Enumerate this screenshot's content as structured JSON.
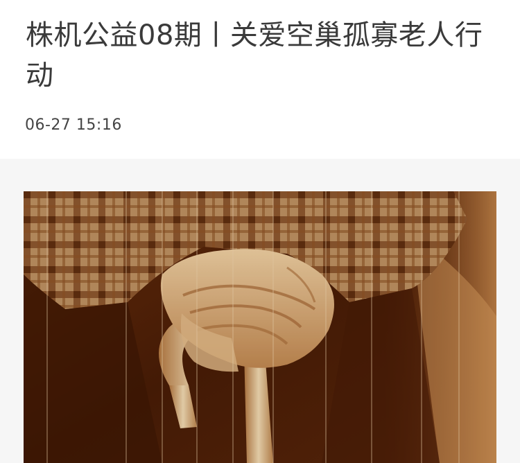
{
  "article": {
    "title": "株机公益08期丨关爱空巢孤寡老人行动",
    "timestamp": "06-27 15:16"
  },
  "hero_image": {
    "subject": "elderly-hands-on-walking-cane",
    "tone": "sepia"
  }
}
